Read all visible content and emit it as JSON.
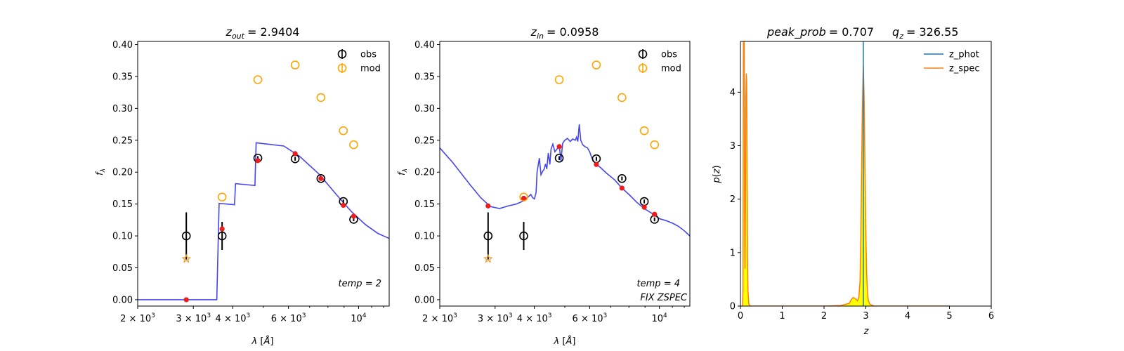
{
  "chart_data": [
    {
      "type": "scatter",
      "title": "z_out = 2.9404",
      "title_parts": {
        "var": "z",
        "sub": "out",
        "value": "= 2.9404"
      },
      "xlabel": "λ [Å]",
      "ylabel": "f_λ",
      "xscale": "log",
      "xlim": [
        2000,
        12500
      ],
      "ylim": [
        -0.01,
        0.405
      ],
      "xticks": [
        {
          "v": 2000,
          "base": "2 × 10",
          "exp": "3"
        },
        {
          "v": 3000,
          "base": "3 × 10",
          "exp": "3"
        },
        {
          "v": 4000,
          "base": "4 × 10",
          "exp": "3"
        },
        {
          "v": 6000,
          "base": "6 × 10",
          "exp": "3"
        },
        {
          "v": 10000,
          "base": "10",
          "exp": "4"
        }
      ],
      "yticks": [
        "0.00",
        "0.05",
        "0.10",
        "0.15",
        "0.20",
        "0.25",
        "0.30",
        "0.35",
        "0.40"
      ],
      "legend": [
        "obs",
        "mod"
      ],
      "annotations": [
        "temp = 2"
      ],
      "obs": {
        "x": [
          2850,
          3700,
          4800,
          6300,
          7600,
          8950,
          9650
        ],
        "y": [
          0.1,
          0.1,
          0.222,
          0.221,
          0.19,
          0.154,
          0.126
        ],
        "yerr": [
          0.037,
          0.022,
          0.003,
          0.003,
          0.003,
          0.003,
          0.003
        ]
      },
      "mod": {
        "x": [
          3700,
          4800,
          6300,
          7600,
          8950,
          9650
        ],
        "y": [
          0.161,
          0.345,
          0.368,
          0.317,
          0.265,
          0.243
        ]
      },
      "star": {
        "x": [
          2850
        ],
        "y": [
          0.064
        ]
      },
      "model_points": {
        "x": [
          2850,
          3700,
          4800,
          6300,
          7600,
          8950,
          9650
        ],
        "y": [
          0.0,
          0.111,
          0.218,
          0.229,
          0.19,
          0.148,
          0.131
        ]
      },
      "sed": {
        "x": [
          2000,
          3560,
          3620,
          4050,
          4080,
          4700,
          4740,
          5800,
          6500,
          7500,
          8500,
          9500,
          10500,
          11500,
          12500
        ],
        "y": [
          0.0,
          0.0,
          0.151,
          0.149,
          0.182,
          0.179,
          0.246,
          0.241,
          0.225,
          0.197,
          0.165,
          0.138,
          0.118,
          0.104,
          0.096
        ]
      }
    },
    {
      "type": "scatter",
      "title": "z_in = 0.0958",
      "title_parts": {
        "var": "z",
        "sub": "in",
        "value": "= 0.0958"
      },
      "xlabel": "λ [Å]",
      "ylabel": "f_λ",
      "xscale": "log",
      "xlim": [
        2000,
        12500
      ],
      "ylim": [
        -0.01,
        0.405
      ],
      "xticks": [
        {
          "v": 2000,
          "base": "2 × 10",
          "exp": "3"
        },
        {
          "v": 3000,
          "base": "3 × 10",
          "exp": "3"
        },
        {
          "v": 4000,
          "base": "4 × 10",
          "exp": "3"
        },
        {
          "v": 6000,
          "base": "6 × 10",
          "exp": "3"
        },
        {
          "v": 10000,
          "base": "10",
          "exp": "4"
        }
      ],
      "yticks": [
        "0.00",
        "0.05",
        "0.10",
        "0.15",
        "0.20",
        "0.25",
        "0.30",
        "0.35",
        "0.40"
      ],
      "legend": [
        "obs",
        "mod"
      ],
      "annotations": [
        "temp = 4",
        "FIX ZSPEC"
      ],
      "obs": {
        "x": [
          2850,
          3700,
          4800,
          6300,
          7600,
          8950,
          9650
        ],
        "y": [
          0.1,
          0.1,
          0.222,
          0.221,
          0.19,
          0.154,
          0.126
        ],
        "yerr": [
          0.037,
          0.022,
          0.003,
          0.003,
          0.003,
          0.003,
          0.003
        ]
      },
      "mod": {
        "x": [
          3700,
          4800,
          6300,
          7600,
          8950,
          9650
        ],
        "y": [
          0.161,
          0.345,
          0.368,
          0.317,
          0.265,
          0.243
        ]
      },
      "star": {
        "x": [
          2850
        ],
        "y": [
          0.064
        ]
      },
      "model_points": {
        "x": [
          2850,
          3700,
          4800,
          6300,
          7600,
          8950,
          9650
        ],
        "y": [
          0.147,
          0.159,
          0.24,
          0.212,
          0.175,
          0.145,
          0.134
        ]
      },
      "sed": {
        "x": [
          2000,
          2200,
          2500,
          2700,
          2900,
          3100,
          3300,
          3500,
          3700,
          3900,
          3950,
          4000,
          4050,
          4080,
          4150,
          4200,
          4260,
          4300,
          4340,
          4380,
          4430,
          4480,
          4520,
          4580,
          4650,
          4720,
          4800,
          4860,
          4920,
          5000,
          5100,
          5200,
          5300,
          5400,
          5450,
          5500,
          5560,
          5620,
          5700,
          5800,
          5900,
          6000,
          6100,
          6200,
          6300,
          6500,
          6800,
          7200,
          7600,
          8000,
          8500,
          9000,
          9500,
          10000,
          10500,
          11000,
          11500,
          12000,
          12500
        ],
        "y": [
          0.238,
          0.215,
          0.18,
          0.16,
          0.146,
          0.143,
          0.147,
          0.15,
          0.155,
          0.165,
          0.16,
          0.158,
          0.168,
          0.2,
          0.222,
          0.196,
          0.202,
          0.205,
          0.213,
          0.205,
          0.23,
          0.212,
          0.236,
          0.244,
          0.232,
          0.236,
          0.242,
          0.218,
          0.245,
          0.25,
          0.253,
          0.248,
          0.252,
          0.25,
          0.255,
          0.248,
          0.275,
          0.25,
          0.243,
          0.24,
          0.238,
          0.232,
          0.222,
          0.216,
          0.212,
          0.207,
          0.198,
          0.188,
          0.175,
          0.165,
          0.152,
          0.142,
          0.135,
          0.127,
          0.124,
          0.12,
          0.115,
          0.108,
          0.1
        ]
      }
    },
    {
      "type": "line",
      "title": "peak_prob = 0.707      q_z = 326.55",
      "title_parts": {
        "a_name": "peak_prob",
        "a_value": "= 0.707",
        "b_var": "q",
        "b_sub": "z",
        "b_value": "= 326.55"
      },
      "xlabel": "z",
      "ylabel": "p(z)",
      "xlim": [
        0,
        6
      ],
      "ylim": [
        0,
        4.95
      ],
      "xticks": [
        "0",
        "1",
        "2",
        "3",
        "4",
        "5",
        "6"
      ],
      "yticks": [
        "0",
        "1",
        "2",
        "3",
        "4"
      ],
      "legend": [
        "z_phot",
        "z_spec"
      ],
      "colors": {
        "z_phot": "#1f77b4",
        "z_spec": "#ff7f0e",
        "fill": "#ffff00"
      },
      "z_phot_at": 2.94,
      "z_spec_pdf": {
        "x": [
          0.0,
          0.01,
          0.02,
          0.03,
          0.04,
          0.05,
          0.06,
          0.07,
          0.08,
          0.09,
          0.1,
          0.11,
          0.12,
          0.13,
          0.14,
          0.15,
          0.16,
          0.17,
          0.18,
          0.2,
          0.22,
          0.25,
          0.3,
          0.5,
          1.0,
          2.0,
          2.4,
          2.6,
          2.65,
          2.7,
          2.75,
          2.8,
          2.83,
          2.86,
          2.88,
          2.9,
          2.92,
          2.94,
          2.96,
          2.98,
          3.0,
          3.02,
          3.04,
          3.06,
          3.1,
          3.2,
          3.5,
          4.0,
          5.0
        ],
        "y": [
          0.0,
          0.0,
          0.0,
          0.0,
          0.0,
          0.0,
          0.3,
          4.95,
          4.95,
          4.95,
          1.6,
          0.7,
          1.8,
          3.9,
          4.35,
          4.2,
          2.5,
          0.9,
          0.3,
          0.05,
          0.01,
          0.0,
          0.0,
          0.0,
          0.0,
          0.0,
          0.01,
          0.05,
          0.12,
          0.16,
          0.14,
          0.1,
          0.15,
          0.45,
          1.3,
          2.6,
          3.8,
          4.5,
          3.9,
          2.6,
          1.4,
          0.6,
          0.25,
          0.1,
          0.03,
          0.0,
          0.0,
          0.0,
          0.0
        ]
      }
    }
  ]
}
